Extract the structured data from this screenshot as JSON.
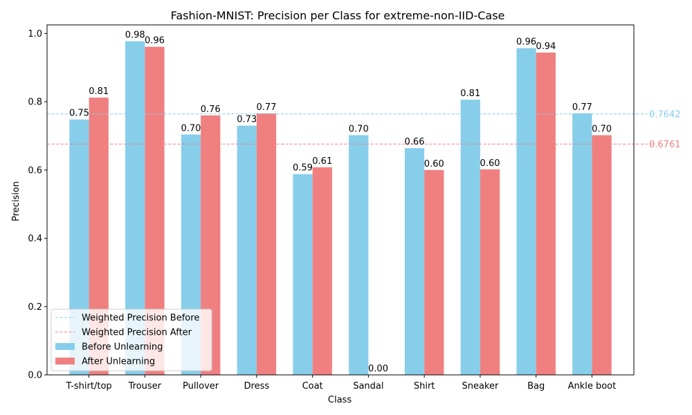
{
  "chart_data": {
    "type": "bar",
    "title": "Fashion-MNIST: Precision per Class for extreme-non-IID-Case",
    "xlabel": "Class",
    "ylabel": "Precision",
    "ylim": [
      0,
      1.025
    ],
    "yticks": [
      0.0,
      0.2,
      0.4,
      0.6,
      0.8,
      1.0
    ],
    "ytick_labels": [
      "0.0",
      "0.2",
      "0.4",
      "0.6",
      "0.8",
      "1.0"
    ],
    "categories": [
      "T-shirt/top",
      "Trouser",
      "Pullover",
      "Dress",
      "Coat",
      "Sandal",
      "Shirt",
      "Sneaker",
      "Bag",
      "Ankle boot"
    ],
    "series": [
      {
        "name": "Before Unlearning",
        "color": "#87CEEB",
        "values": [
          0.748,
          0.977,
          0.704,
          0.73,
          0.588,
          0.702,
          0.664,
          0.806,
          0.957,
          0.766
        ],
        "labels": [
          "0.75",
          "0.98",
          "0.70",
          "0.73",
          "0.59",
          "0.70",
          "0.66",
          "0.81",
          "0.96",
          "0.77"
        ]
      },
      {
        "name": "After Unlearning",
        "color": "#F08080",
        "values": [
          0.812,
          0.961,
          0.76,
          0.766,
          0.608,
          0.0,
          0.6,
          0.602,
          0.944,
          0.702
        ],
        "labels": [
          "0.81",
          "0.96",
          "0.76",
          "0.77",
          "0.61",
          "0.00",
          "0.60",
          "0.60",
          "0.94",
          "0.70"
        ]
      }
    ],
    "reference_lines": [
      {
        "name": "Weighted Precision Before",
        "value": 0.7642,
        "label": "0.7642",
        "color": "#87CEEB"
      },
      {
        "name": "Weighted Precision After",
        "value": 0.6761,
        "label": "0.6761",
        "color": "#F08080"
      }
    ],
    "legend_position": "lower-left",
    "grid": false
  }
}
